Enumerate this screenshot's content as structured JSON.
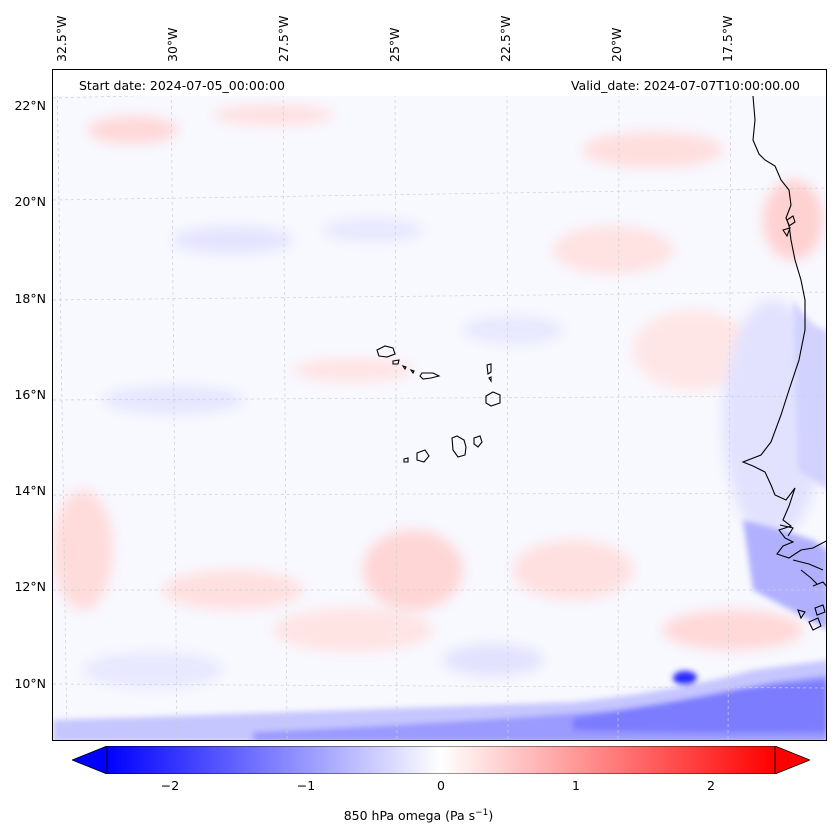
{
  "header": {
    "start_date": "Start date: 2024-07-05_00:00:00",
    "valid_date": "Valid_date: 2024-07-07T10:00:00.00"
  },
  "axes": {
    "lon_labels": [
      "32.5°W",
      "30°W",
      "27.5°W",
      "25°W",
      "22.5°W",
      "20°W",
      "17.5°W"
    ],
    "lat_labels": [
      "22°N",
      "20°N",
      "18°N",
      "16°N",
      "14°N",
      "12°N",
      "10°N"
    ]
  },
  "colorbar": {
    "ticks": [
      "−2",
      "−1",
      "0",
      "1",
      "2"
    ],
    "label": "850 hPa omega (Pa s",
    "label_exp": "−1",
    "label_close": ")",
    "vmin": -2.7,
    "vmax": 2.7,
    "min_color": "#0000ff",
    "mid_color": "#ffffff",
    "max_color": "#ff0000"
  },
  "map": {
    "field": "850 hPa omega",
    "units": "Pa s−1",
    "ocean_color": "#f8f8ff",
    "coast_color": "#000000",
    "grid_color": "#cccccc"
  }
}
